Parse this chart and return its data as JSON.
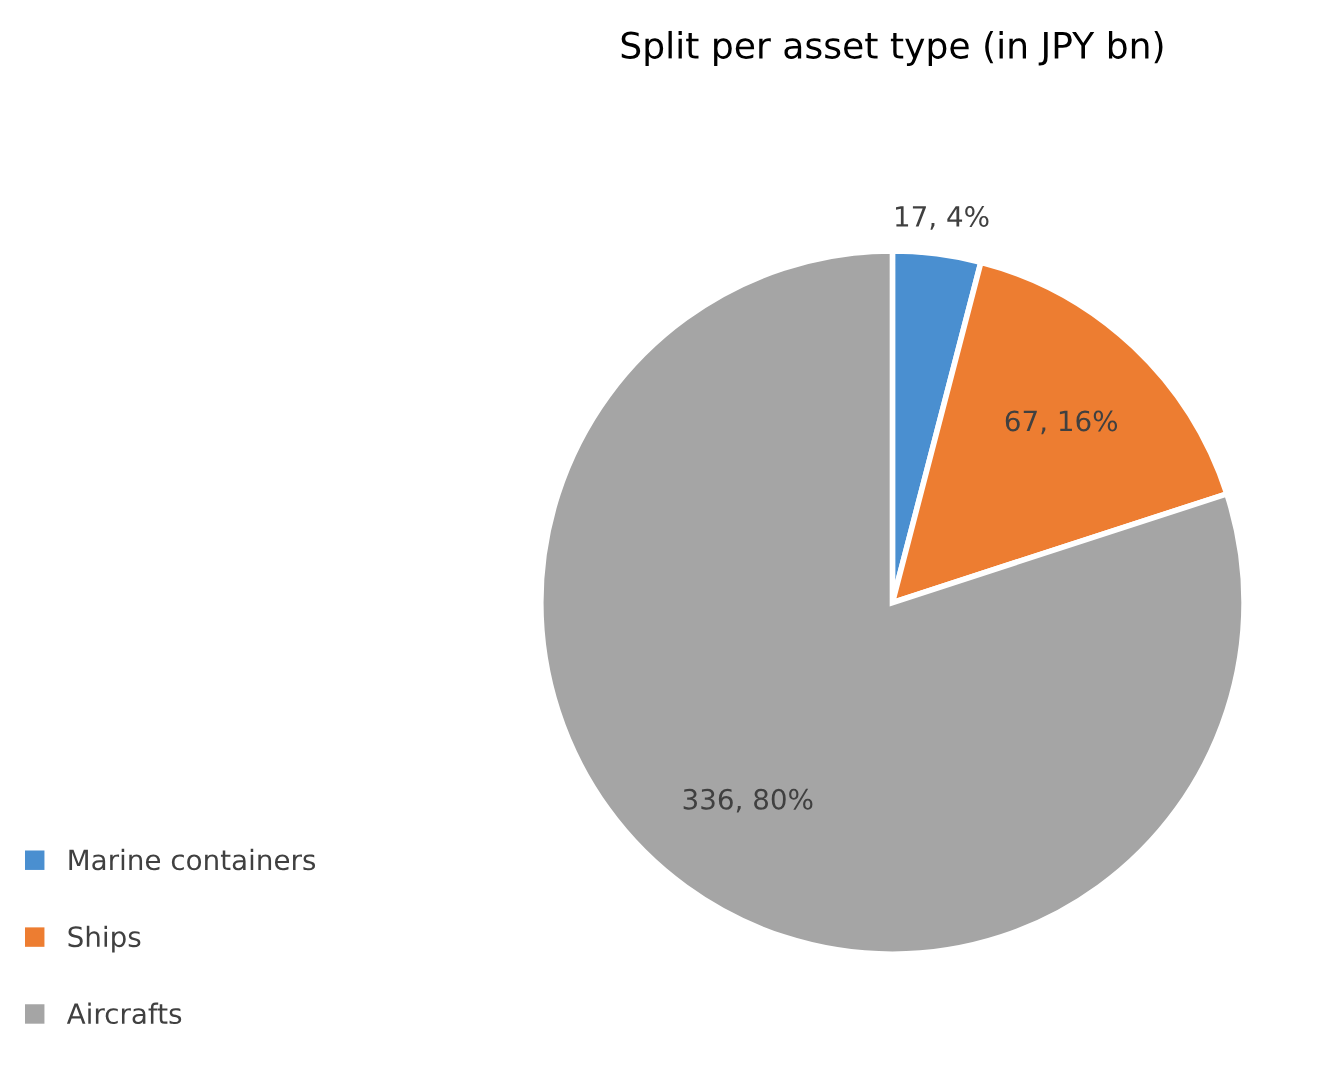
{
  "chart_data": {
    "type": "pie",
    "title": "Split per asset type (in JPY bn)",
    "categories": [
      "Marine containers",
      "Ships",
      "Aircrafts"
    ],
    "values": [
      17,
      67,
      336
    ],
    "colors": [
      "#4a8fd0",
      "#ed7d31",
      "#a5a5a5"
    ],
    "value_labels": [
      "17, 4%",
      "67, 16%",
      "336, 80%"
    ],
    "legend": "left"
  }
}
